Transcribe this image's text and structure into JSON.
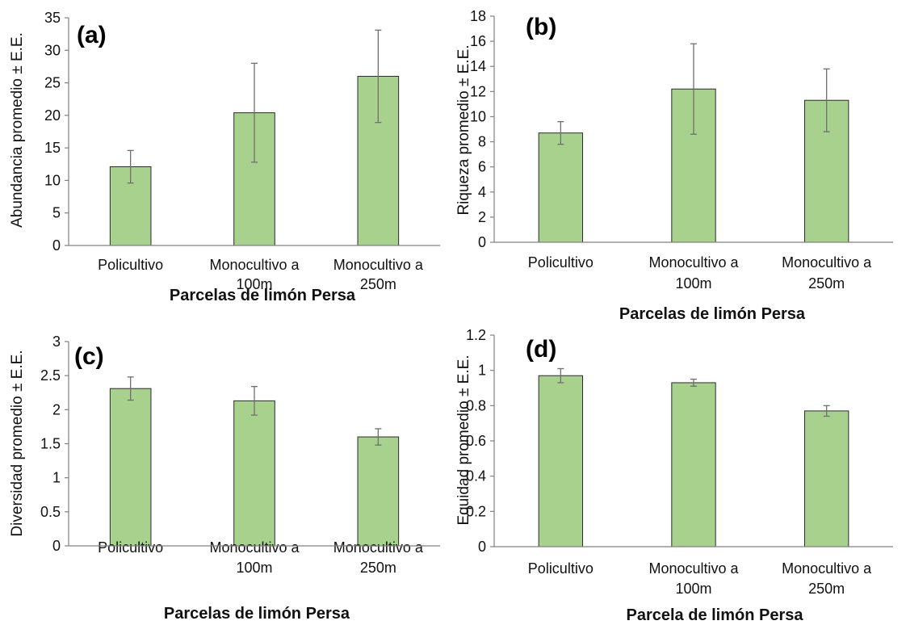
{
  "chart_data": [
    {
      "panel": "(a)",
      "type": "bar",
      "categories": [
        "Policultivo",
        "Monocultivo a 100m",
        "Monocultivo a 250m"
      ],
      "category_lines": [
        [
          "Policultivo"
        ],
        [
          "Monocultivo a",
          "100m"
        ],
        [
          "Monocultivo a",
          "250m"
        ]
      ],
      "values": [
        12.1,
        20.4,
        26.0
      ],
      "errors": [
        2.5,
        7.6,
        7.1
      ],
      "ylabel": "Abundancia promedio ± E.E.",
      "xlabel": "Parcelas de limón Persa",
      "ylim": [
        0,
        35
      ],
      "yticks": [
        0,
        5,
        10,
        15,
        20,
        25,
        30,
        35
      ]
    },
    {
      "panel": "(b)",
      "type": "bar",
      "categories": [
        "Policultivo",
        "Monocultivo a 100m",
        "Monocultivo a 250m"
      ],
      "category_lines": [
        [
          "Policultivo"
        ],
        [
          "Monocultivo a",
          "100m"
        ],
        [
          "Monocultivo a",
          "250m"
        ]
      ],
      "values": [
        8.7,
        12.2,
        11.3
      ],
      "errors": [
        0.9,
        3.6,
        2.5
      ],
      "ylabel": "Riqueza promedio ± E.E.",
      "xlabel": "Parcelas de limón Persa",
      "ylim": [
        0,
        18
      ],
      "yticks": [
        0,
        2,
        4,
        6,
        8,
        10,
        12,
        14,
        16,
        18
      ]
    },
    {
      "panel": "(c)",
      "type": "bar",
      "categories": [
        "Policultivo",
        "Monocultivo a 100m",
        "Monocultivo a 250m"
      ],
      "category_lines": [
        [
          "Policultivo"
        ],
        [
          "Monocultivo a",
          "100m"
        ],
        [
          "Monocultivo a",
          "250m"
        ]
      ],
      "values": [
        2.31,
        2.13,
        1.6
      ],
      "errors": [
        0.17,
        0.21,
        0.12
      ],
      "ylabel": "Diversidad promedio ± E.E.",
      "xlabel": "Parcelas de limón Persa",
      "ylim": [
        0,
        3
      ],
      "yticks": [
        0,
        0.5,
        1,
        1.5,
        2,
        2.5,
        3
      ]
    },
    {
      "panel": "(d)",
      "type": "bar",
      "categories": [
        "Policultivo",
        "Monocultivo a 100m",
        "Monocultivo a 250m"
      ],
      "category_lines": [
        [
          "Policultivo"
        ],
        [
          "Monocultivo a",
          "100m"
        ],
        [
          "Monocultivo a",
          "250m"
        ]
      ],
      "values": [
        0.97,
        0.93,
        0.77
      ],
      "errors": [
        0.04,
        0.02,
        0.03
      ],
      "ylabel": "Equidad promedio ± E.E.",
      "xlabel": "Parcela de limón Persa",
      "ylim": [
        0,
        1.2
      ],
      "yticks": [
        0,
        0.2,
        0.4,
        0.6,
        0.8,
        1,
        1.2
      ]
    }
  ],
  "colors": {
    "bar_fill": "#a9d18e",
    "bar_stroke": "#2b2b2b",
    "axis": "#808080",
    "error_bar": "#6f6f6f"
  }
}
